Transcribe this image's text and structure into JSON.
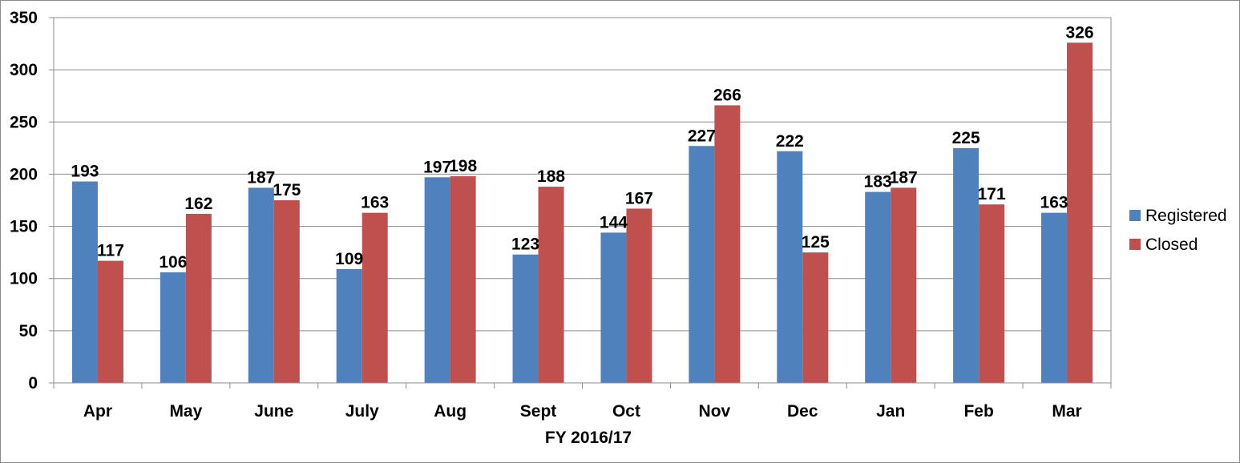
{
  "chart_data": {
    "type": "bar",
    "categories": [
      "Apr",
      "May",
      "June",
      "July",
      "Aug",
      "Sept",
      "Oct",
      "Nov",
      "Dec",
      "Jan",
      "Feb",
      "Mar"
    ],
    "series": [
      {
        "name": "Registered",
        "color": "#4f81bd",
        "values": [
          193,
          106,
          187,
          109,
          197,
          123,
          144,
          227,
          222,
          183,
          225,
          163
        ]
      },
      {
        "name": "Closed",
        "color": "#c0504d",
        "values": [
          117,
          162,
          175,
          163,
          198,
          188,
          167,
          266,
          125,
          187,
          171,
          326
        ]
      }
    ],
    "title": "",
    "xlabel": "FY 2016/17",
    "ylabel": "",
    "ylim": [
      0,
      350
    ],
    "yticks": [
      0,
      50,
      100,
      150,
      200,
      250,
      300,
      350
    ],
    "grid": true,
    "legend_position": "right",
    "data_labels": true
  }
}
